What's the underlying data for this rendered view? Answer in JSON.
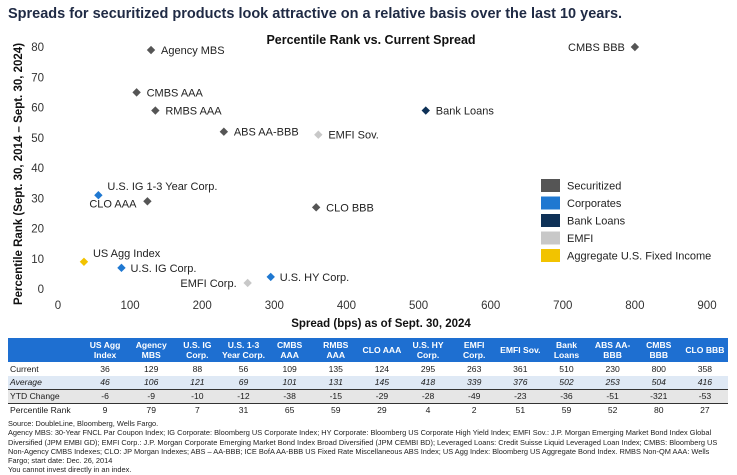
{
  "headline": "Spreads for securitized products look attractive on a relative basis over the last 10 years.",
  "chart_data": {
    "type": "scatter",
    "title": "Percentile Rank vs. Current Spread",
    "xlabel": "Spread (bps) as of Sept. 30, 2024",
    "ylabel": "Percentile Rank (Sept. 30, 2014 – Sept. 30, 2024)",
    "xlim": [
      0,
      900
    ],
    "ylim": [
      0,
      80
    ],
    "xticks": [
      0,
      100,
      200,
      300,
      400,
      500,
      600,
      700,
      800,
      900
    ],
    "yticks": [
      0,
      10,
      20,
      30,
      40,
      50,
      60,
      70,
      80
    ],
    "grid": false,
    "legend": "right",
    "categories": [
      {
        "name": "Securitized",
        "color": "#555555"
      },
      {
        "name": "Corporates",
        "color": "#1f78d1"
      },
      {
        "name": "Bank Loans",
        "color": "#0e3157"
      },
      {
        "name": "EMFI",
        "color": "#c8c8c8"
      },
      {
        "name": "Aggregate U.S. Fixed Income",
        "color": "#f2c300"
      }
    ],
    "points": [
      {
        "label": "Agency MBS",
        "x": 129,
        "y": 79,
        "category": "Securitized"
      },
      {
        "label": "CMBS AAA",
        "x": 109,
        "y": 65,
        "category": "Securitized"
      },
      {
        "label": "RMBS AAA",
        "x": 135,
        "y": 59,
        "category": "Securitized"
      },
      {
        "label": "ABS AA-BBB",
        "x": 230,
        "y": 52,
        "category": "Securitized"
      },
      {
        "label": "CLO AAA",
        "x": 124,
        "y": 29,
        "category": "Securitized"
      },
      {
        "label": "CLO BBB",
        "x": 358,
        "y": 27,
        "category": "Securitized"
      },
      {
        "label": "CMBS BBB",
        "x": 800,
        "y": 80,
        "category": "Securitized"
      },
      {
        "label": "U.S. IG 1-3 Year Corp.",
        "x": 56,
        "y": 31,
        "category": "Corporates"
      },
      {
        "label": "U.S. IG Corp.",
        "x": 88,
        "y": 7,
        "category": "Corporates"
      },
      {
        "label": "U.S. HY Corp.",
        "x": 295,
        "y": 4,
        "category": "Corporates"
      },
      {
        "label": "Bank Loans",
        "x": 510,
        "y": 59,
        "category": "Bank Loans"
      },
      {
        "label": "EMFI Sov.",
        "x": 361,
        "y": 51,
        "category": "EMFI"
      },
      {
        "label": "EMFI Corp.",
        "x": 263,
        "y": 2,
        "category": "EMFI"
      },
      {
        "label": "US Agg Index",
        "x": 36,
        "y": 9,
        "category": "Aggregate U.S. Fixed Income"
      }
    ]
  },
  "table": {
    "headers": [
      "US Agg Index",
      "Agency MBS",
      "U.S. IG Corp.",
      "U.S. 1-3 Year Corp.",
      "CMBS AAA",
      "RMBS AAA",
      "CLO AAA",
      "U.S. HY Corp.",
      "EMFI Corp.",
      "EMFI Sov.",
      "Bank Loans",
      "ABS AA-BBB",
      "CMBS BBB",
      "CLO BBB"
    ],
    "rows": [
      {
        "label": "Current",
        "values": [
          "36",
          "129",
          "88",
          "56",
          "109",
          "135",
          "124",
          "295",
          "263",
          "361",
          "510",
          "230",
          "800",
          "358"
        ]
      },
      {
        "label": "Average",
        "values": [
          "46",
          "106",
          "121",
          "69",
          "101",
          "131",
          "145",
          "418",
          "339",
          "376",
          "502",
          "253",
          "504",
          "416"
        ]
      },
      {
        "label": "YTD Change",
        "values": [
          "-6",
          "-9",
          "-10",
          "-12",
          "-38",
          "-15",
          "-29",
          "-28",
          "-49",
          "-23",
          "-36",
          "-51",
          "-321",
          "-53"
        ]
      },
      {
        "label": "Percentile Rank",
        "values": [
          "9",
          "79",
          "7",
          "31",
          "65",
          "59",
          "29",
          "4",
          "2",
          "51",
          "59",
          "52",
          "80",
          "27"
        ]
      }
    ]
  },
  "footnote": {
    "source": "Source: DoubleLine, Bloomberg, Wells Fargo.",
    "definitions": "Agency MBS: 30-Year FNCL Par Coupon Index; IG Corporate: Bloomberg US Corporate Index; HY Corporate: Bloomberg US Corporate High Yield Index; EMFI Sov.: J.P. Morgan Emerging Market Bond Index Global Diversified (JPM EMBI GD); EMFI Corp.: J.P. Morgan Corporate Emerging Market Bond Index Broad Diversified (JPM CEMBI BD); Leveraged Loans: Credit Suisse Liquid Leveraged Loan Index; CMBS: Bloomberg US Non-Agency CMBS Indexes; CLO: JP Morgan Indexes; ABS – AA-BBB; ICE BofA AA-BBB US Fixed Rate Miscellaneous ABS Index; US Agg Index: Bloomberg US Aggregate Bond Index. RMBS Non-QM AAA: Wells Fargo; start date: Dec. 26, 2014",
    "disclaimer": "You cannot invest directly in an index."
  }
}
